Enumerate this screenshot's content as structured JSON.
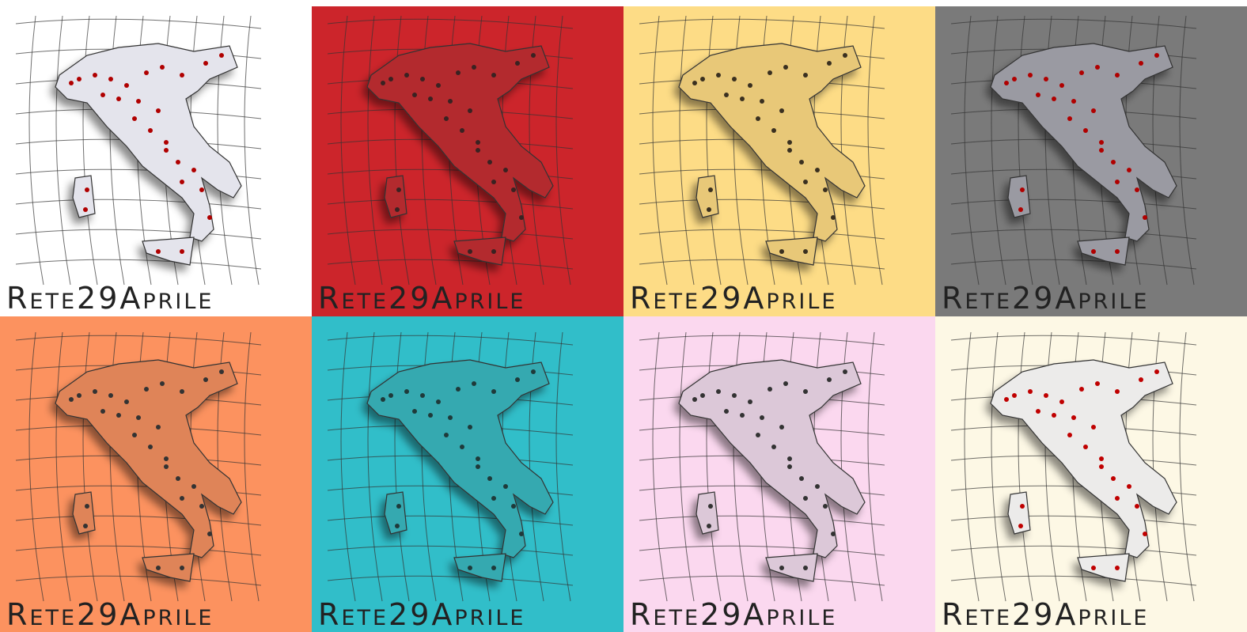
{
  "tiles": [
    {
      "label": "Rete29Aprile"
    },
    {
      "label": "Rete29Aprile"
    },
    {
      "label": "Rete29Aprile"
    },
    {
      "label": "Rete29Aprile"
    },
    {
      "label": "Rete29Aprile"
    },
    {
      "label": "Rete29Aprile"
    },
    {
      "label": "Rete29Aprile"
    },
    {
      "label": "Rete29Aprile"
    }
  ]
}
